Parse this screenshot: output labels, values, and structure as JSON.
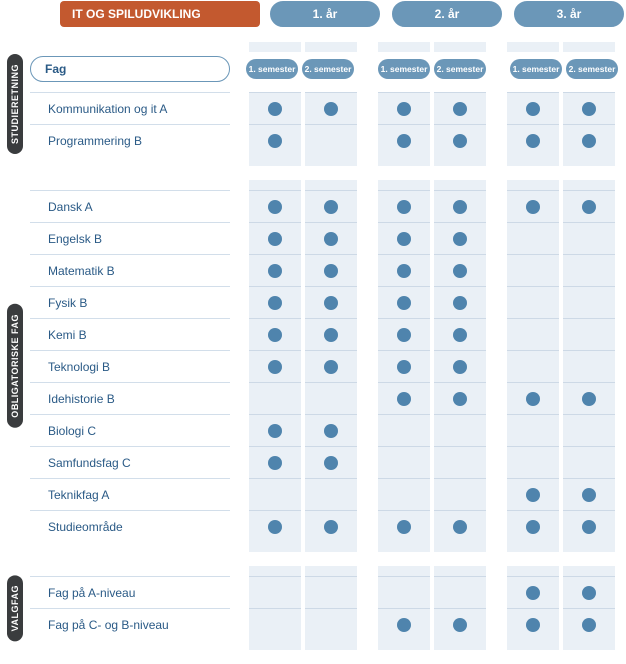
{
  "colors": {
    "title_bg": "#c3592f",
    "year_bg": "#6b97b8",
    "vtab_bg": "#3a3c3e",
    "cell_bg": "#eaf0f6",
    "dot": "#4f84ad",
    "text_blue": "#2a5a86",
    "border": "#cdd9e6"
  },
  "title": "IT OG SPILUDVIKLING",
  "years": [
    "1. år",
    "2. år",
    "3. år"
  ],
  "semesters": [
    "1. semester",
    "2. semester"
  ],
  "fag_label": "Fag",
  "sections": [
    {
      "id": "studieretning",
      "label": "STUDIERETNING",
      "show_sub_header": true,
      "rows": [
        {
          "label": "Kommunikation og it A",
          "dots": [
            [
              1,
              1
            ],
            [
              1,
              1
            ],
            [
              1,
              1
            ]
          ]
        },
        {
          "label": "Programmering B",
          "dots": [
            [
              1,
              0
            ],
            [
              1,
              1
            ],
            [
              1,
              1
            ]
          ]
        }
      ]
    },
    {
      "id": "obligatoriske",
      "label": "OBLIGATORISKE FAG",
      "show_sub_header": false,
      "rows": [
        {
          "label": "Dansk A",
          "dots": [
            [
              1,
              1
            ],
            [
              1,
              1
            ],
            [
              1,
              1
            ]
          ]
        },
        {
          "label": "Engelsk B",
          "dots": [
            [
              1,
              1
            ],
            [
              1,
              1
            ],
            [
              0,
              0
            ]
          ]
        },
        {
          "label": "Matematik B",
          "dots": [
            [
              1,
              1
            ],
            [
              1,
              1
            ],
            [
              0,
              0
            ]
          ]
        },
        {
          "label": "Fysik B",
          "dots": [
            [
              1,
              1
            ],
            [
              1,
              1
            ],
            [
              0,
              0
            ]
          ]
        },
        {
          "label": "Kemi B",
          "dots": [
            [
              1,
              1
            ],
            [
              1,
              1
            ],
            [
              0,
              0
            ]
          ]
        },
        {
          "label": "Teknologi B",
          "dots": [
            [
              1,
              1
            ],
            [
              1,
              1
            ],
            [
              0,
              0
            ]
          ]
        },
        {
          "label": "Idehistorie B",
          "dots": [
            [
              0,
              0
            ],
            [
              1,
              1
            ],
            [
              1,
              1
            ]
          ]
        },
        {
          "label": "Biologi C",
          "dots": [
            [
              1,
              1
            ],
            [
              0,
              0
            ],
            [
              0,
              0
            ]
          ]
        },
        {
          "label": "Samfundsfag C",
          "dots": [
            [
              1,
              1
            ],
            [
              0,
              0
            ],
            [
              0,
              0
            ]
          ]
        },
        {
          "label": "Teknikfag A",
          "dots": [
            [
              0,
              0
            ],
            [
              0,
              0
            ],
            [
              1,
              1
            ]
          ]
        },
        {
          "label": "Studieområde",
          "dots": [
            [
              1,
              1
            ],
            [
              1,
              1
            ],
            [
              1,
              1
            ]
          ]
        }
      ]
    },
    {
      "id": "valgfag",
      "label": "VALGFAG",
      "show_sub_header": false,
      "rows": [
        {
          "label": "Fag på A-niveau",
          "dots": [
            [
              0,
              0
            ],
            [
              0,
              0
            ],
            [
              1,
              1
            ]
          ]
        },
        {
          "label": "Fag på C- og B-niveau",
          "dots": [
            [
              0,
              0
            ],
            [
              1,
              1
            ],
            [
              1,
              1
            ]
          ]
        }
      ]
    }
  ]
}
